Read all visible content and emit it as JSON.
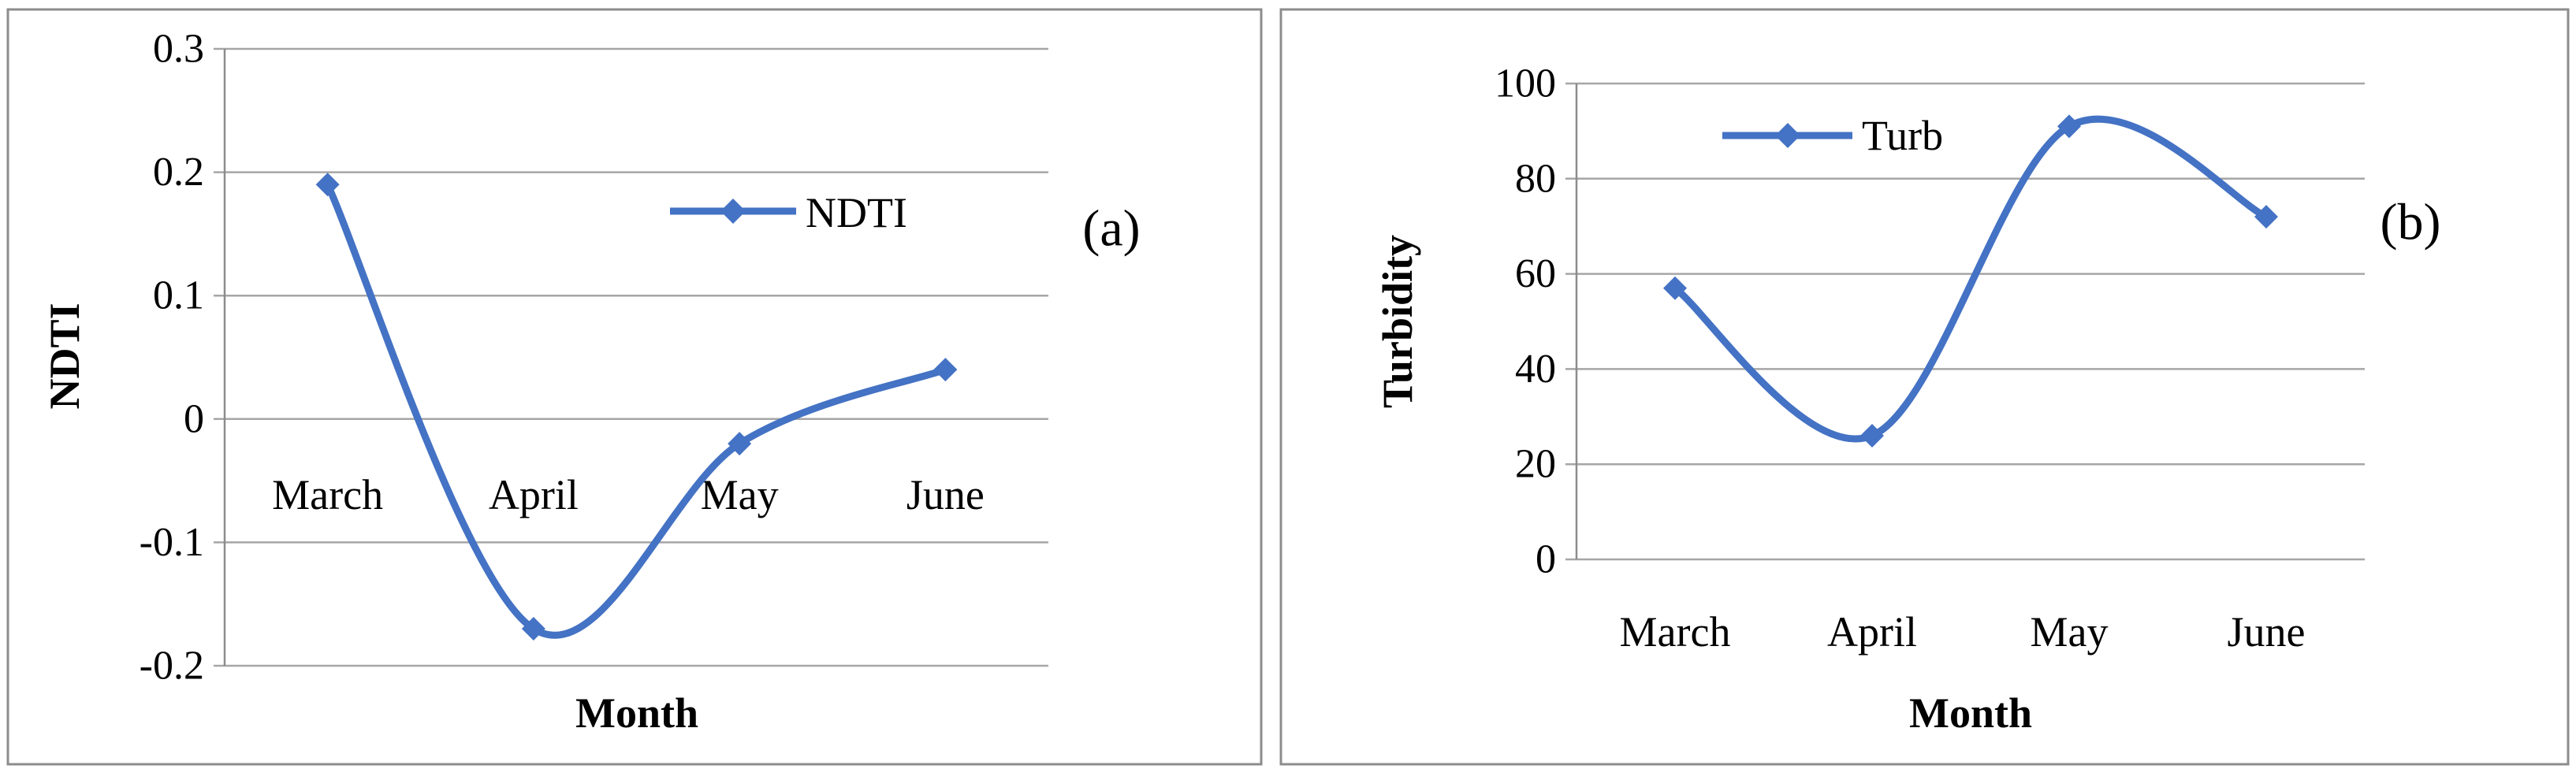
{
  "colors": {
    "series": "#4472c4",
    "frame": "#8c8c8c",
    "grid": "#a6a6a6"
  },
  "chart_data": [
    {
      "type": "line",
      "panel_label": "(a)",
      "categories": [
        "March",
        "April",
        "May",
        "June"
      ],
      "series": [
        {
          "name": "NDTI",
          "values": [
            0.19,
            -0.17,
            -0.02,
            0.04
          ]
        }
      ],
      "xlabel": "Month",
      "ylabel": "NDTI",
      "ylim": [
        -0.2,
        0.3
      ],
      "yticks": [
        "0.3",
        "0.2",
        "0.1",
        "0",
        "-0.1",
        "-0.2"
      ],
      "grid": true,
      "smooth": true,
      "marker": "diamond",
      "legend_position": "top-right"
    },
    {
      "type": "line",
      "panel_label": "(b)",
      "categories": [
        "March",
        "April",
        "May",
        "June"
      ],
      "series": [
        {
          "name": "Turb",
          "values": [
            57,
            26,
            91,
            72
          ]
        }
      ],
      "xlabel": "Month",
      "ylabel": "Turbidity",
      "ylim": [
        0,
        100
      ],
      "yticks": [
        "100",
        "80",
        "60",
        "40",
        "20",
        "0"
      ],
      "grid": true,
      "smooth": true,
      "marker": "diamond",
      "legend_position": "top-left"
    }
  ]
}
